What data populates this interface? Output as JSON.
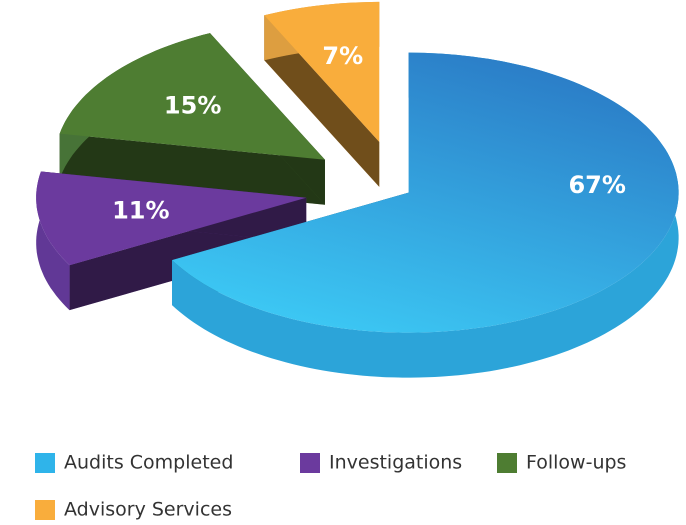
{
  "chart_data": {
    "type": "pie",
    "categories": [
      "Audits Completed",
      "Investigations",
      "Follow-ups",
      "Advisory Services"
    ],
    "values": [
      67,
      11,
      15,
      7
    ],
    "value_labels": [
      "67%",
      "11%",
      "15%",
      "7%"
    ],
    "colors": [
      "#2fb4ea",
      "#6b3a9e",
      "#4e7d32",
      "#f9ad3c"
    ]
  }
}
